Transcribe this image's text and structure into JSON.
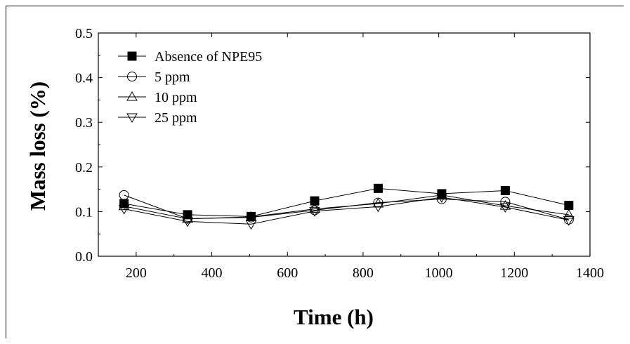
{
  "chart_data": {
    "type": "line",
    "xlabel": "Time (h)",
    "ylabel": "Mass loss (%)",
    "xlim": [
      100,
      1400
    ],
    "ylim": [
      0.0,
      0.5
    ],
    "xticks": [
      200,
      400,
      600,
      800,
      1000,
      1200,
      1400
    ],
    "yticks": [
      "0.0",
      "0.1",
      "0.2",
      "0.3",
      "0.4",
      "0.5"
    ],
    "grid": false,
    "legend_position": "top-left",
    "x": [
      168,
      336,
      504,
      672,
      840,
      1008,
      1176,
      1344
    ],
    "series": [
      {
        "name": "Absence of NPE95",
        "marker": "filled-square",
        "values": [
          0.118,
          0.093,
          0.089,
          0.124,
          0.152,
          0.14,
          0.147,
          0.114
        ]
      },
      {
        "name": "5 ppm",
        "marker": "open-circle",
        "values": [
          0.137,
          0.084,
          0.087,
          0.103,
          0.12,
          0.128,
          0.122,
          0.082
        ]
      },
      {
        "name": "10 ppm",
        "marker": "open-triangle-up",
        "values": [
          0.112,
          0.084,
          0.088,
          0.106,
          0.118,
          0.137,
          0.113,
          0.093
        ]
      },
      {
        "name": "25 ppm",
        "marker": "open-triangle-down",
        "values": [
          0.106,
          0.078,
          0.072,
          0.101,
          0.111,
          0.132,
          0.11,
          0.081
        ]
      }
    ],
    "colors": {
      "line": "#000000",
      "marker_fill": "#000000",
      "background": "#ffffff"
    }
  }
}
